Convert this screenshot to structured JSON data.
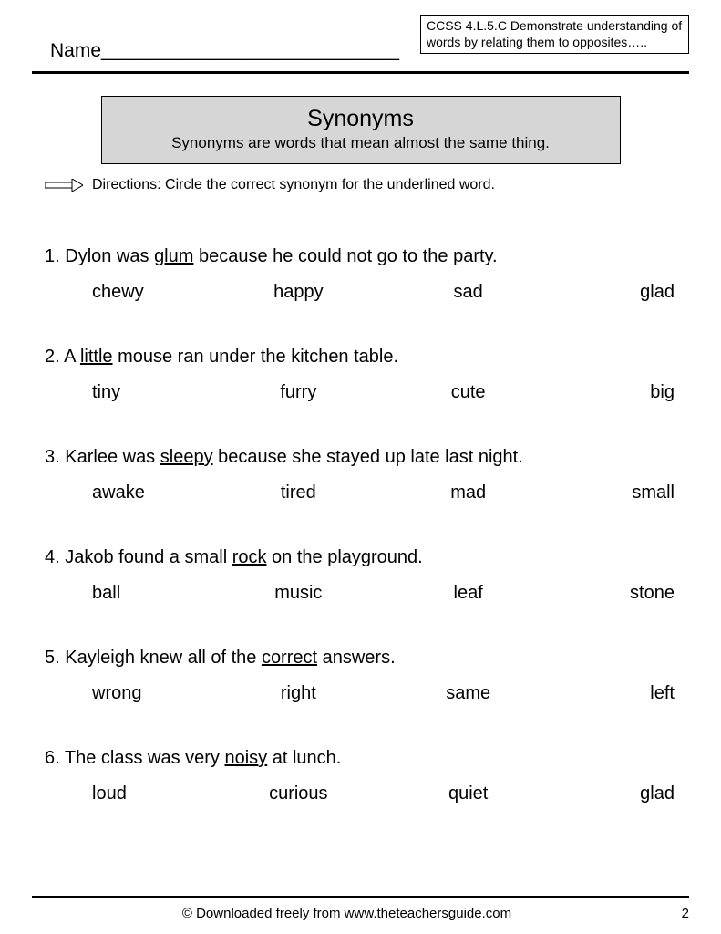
{
  "header": {
    "name_label": "Name____________________________",
    "standard_text": "CCSS 4.L.5.C Demonstrate understanding of words by relating them to opposites….."
  },
  "title_box": {
    "title": "Synonyms",
    "subtitle": "Synonyms are words that mean almost the same thing."
  },
  "directions": {
    "text": "Directions: Circle the correct synonym for the underlined word."
  },
  "questions": [
    {
      "num": "1.",
      "pre": "Dylon was ",
      "underlined": "glum",
      "post": " because he could not go to the party.",
      "options": [
        "chewy",
        "happy",
        "sad",
        "glad"
      ]
    },
    {
      "num": "2.",
      "pre": " A ",
      "underlined": "little",
      "post": " mouse ran under the kitchen table.",
      "options": [
        "tiny",
        "furry",
        "cute",
        "big"
      ]
    },
    {
      "num": "3.",
      "pre": " Karlee was ",
      "underlined": "sleepy",
      "post": " because she stayed up late last night.",
      "options": [
        "awake",
        "tired",
        "mad",
        "small"
      ]
    },
    {
      "num": "4.",
      "pre": "Jakob found a small ",
      "underlined": "rock",
      "post": " on the playground.",
      "options": [
        "ball",
        "music",
        "leaf",
        "stone"
      ]
    },
    {
      "num": "5.",
      "pre": " Kayleigh knew all of the ",
      "underlined": "correct",
      "post": " answers.",
      "options": [
        "wrong",
        "right",
        "same",
        "left"
      ]
    },
    {
      "num": "6.",
      "pre": " The class was very ",
      "underlined": "noisy",
      "post": " at lunch.",
      "options": [
        "loud",
        "curious",
        "quiet",
        "glad"
      ]
    }
  ],
  "footer": {
    "text": "© Downloaded freely from www.theteachersguide.com",
    "page": "2"
  },
  "colors": {
    "background": "#ffffff",
    "text": "#000000",
    "title_box_bg": "#d6d6d6",
    "border": "#000000"
  }
}
